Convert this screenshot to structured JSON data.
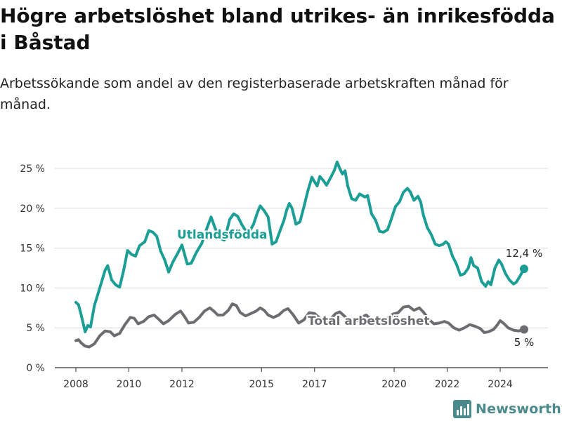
{
  "title": "Högre arbetslöshet bland utrikes- än inrikesfödda i Båstad",
  "subtitle": "Arbetssökande som andel av den registerbaserade arbetskraften månad för månad.",
  "brand": {
    "name": "Newsworthy",
    "icon": "newsworthy-logo-icon"
  },
  "colors": {
    "utlandsfodda": "#1a9e96",
    "total": "#6d6d71",
    "grid": "#d9d9d9",
    "brand": "#4a8a8a"
  },
  "chart_data": {
    "type": "line",
    "title": "Högre arbetslöshet bland utrikes- än inrikesfödda i Båstad",
    "subtitle": "Arbetssökande som andel av den registerbaserade arbetskraften månad för månad.",
    "xlabel": "",
    "ylabel": "",
    "xlim": [
      2008,
      2025
    ],
    "ylim": [
      0,
      25
    ],
    "x_ticks": [
      "2008",
      "2010",
      "2012",
      "2015",
      "2017",
      "2020",
      "2022",
      "2024"
    ],
    "y_ticks": [
      "0 %",
      "5 %",
      "10 %",
      "15 %",
      "20 %",
      "25 %"
    ],
    "grid": "horizontal",
    "legend": "inline labels",
    "series": [
      {
        "name": "Utlandsfödda",
        "end_label": "12,4 %",
        "points": [
          [
            2008.0,
            8.2
          ],
          [
            2008.1,
            7.9
          ],
          [
            2008.2,
            6.6
          ],
          [
            2008.35,
            4.5
          ],
          [
            2008.45,
            5.3
          ],
          [
            2008.55,
            5.1
          ],
          [
            2008.7,
            7.8
          ],
          [
            2008.9,
            10.0
          ],
          [
            2009.1,
            12.2
          ],
          [
            2009.2,
            12.8
          ],
          [
            2009.35,
            11.0
          ],
          [
            2009.5,
            10.4
          ],
          [
            2009.65,
            10.1
          ],
          [
            2009.8,
            12.2
          ],
          [
            2009.95,
            14.7
          ],
          [
            2010.1,
            14.2
          ],
          [
            2010.25,
            14.0
          ],
          [
            2010.4,
            15.3
          ],
          [
            2010.6,
            15.8
          ],
          [
            2010.75,
            17.2
          ],
          [
            2010.9,
            17.0
          ],
          [
            2011.05,
            16.5
          ],
          [
            2011.2,
            14.6
          ],
          [
            2011.35,
            13.5
          ],
          [
            2011.5,
            12.0
          ],
          [
            2011.65,
            13.2
          ],
          [
            2011.85,
            14.4
          ],
          [
            2012.0,
            15.4
          ],
          [
            2012.2,
            13.0
          ],
          [
            2012.35,
            13.1
          ],
          [
            2012.55,
            14.5
          ],
          [
            2012.75,
            15.6
          ],
          [
            2012.95,
            17.6
          ],
          [
            2013.1,
            18.9
          ],
          [
            2013.25,
            17.5
          ],
          [
            2013.45,
            16.2
          ],
          [
            2013.6,
            16.0
          ],
          [
            2013.8,
            18.6
          ],
          [
            2013.95,
            19.3
          ],
          [
            2014.1,
            19.0
          ],
          [
            2014.25,
            18.0
          ],
          [
            2014.4,
            17.2
          ],
          [
            2014.55,
            17.1
          ],
          [
            2014.7,
            18.0
          ],
          [
            2014.85,
            19.5
          ],
          [
            2014.95,
            20.3
          ],
          [
            2015.1,
            19.7
          ],
          [
            2015.25,
            18.9
          ],
          [
            2015.4,
            15.5
          ],
          [
            2015.55,
            15.8
          ],
          [
            2015.7,
            17.2
          ],
          [
            2015.85,
            18.5
          ],
          [
            2015.95,
            19.8
          ],
          [
            2016.05,
            20.6
          ],
          [
            2016.15,
            20.0
          ],
          [
            2016.3,
            18.0
          ],
          [
            2016.45,
            18.3
          ],
          [
            2016.6,
            20.2
          ],
          [
            2016.75,
            22.2
          ],
          [
            2016.9,
            23.9
          ],
          [
            2017.0,
            23.3
          ],
          [
            2017.1,
            22.8
          ],
          [
            2017.2,
            24.0
          ],
          [
            2017.35,
            23.4
          ],
          [
            2017.45,
            22.9
          ],
          [
            2017.6,
            23.8
          ],
          [
            2017.75,
            24.8
          ],
          [
            2017.85,
            25.8
          ],
          [
            2017.95,
            25.0
          ],
          [
            2018.05,
            24.3
          ],
          [
            2018.15,
            24.7
          ],
          [
            2018.25,
            22.8
          ],
          [
            2018.4,
            21.2
          ],
          [
            2018.55,
            21.0
          ],
          [
            2018.7,
            21.8
          ],
          [
            2018.9,
            21.4
          ],
          [
            2019.0,
            21.6
          ],
          [
            2019.15,
            19.3
          ],
          [
            2019.3,
            18.5
          ],
          [
            2019.45,
            17.1
          ],
          [
            2019.6,
            17.0
          ],
          [
            2019.75,
            17.3
          ],
          [
            2019.85,
            18.2
          ],
          [
            2019.95,
            19.2
          ],
          [
            2020.05,
            20.2
          ],
          [
            2020.2,
            20.8
          ],
          [
            2020.35,
            22.0
          ],
          [
            2020.5,
            22.5
          ],
          [
            2020.6,
            22.1
          ],
          [
            2020.75,
            21.0
          ],
          [
            2020.9,
            21.5
          ],
          [
            2021.0,
            20.8
          ],
          [
            2021.1,
            19.2
          ],
          [
            2021.25,
            17.6
          ],
          [
            2021.4,
            16.7
          ],
          [
            2021.55,
            15.5
          ],
          [
            2021.7,
            15.3
          ],
          [
            2021.85,
            15.5
          ],
          [
            2021.95,
            15.8
          ],
          [
            2022.05,
            15.5
          ],
          [
            2022.2,
            14.0
          ],
          [
            2022.35,
            13.0
          ],
          [
            2022.5,
            11.6
          ],
          [
            2022.65,
            11.8
          ],
          [
            2022.8,
            12.5
          ],
          [
            2022.9,
            13.8
          ],
          [
            2023.0,
            12.8
          ],
          [
            2023.15,
            12.5
          ],
          [
            2023.3,
            10.8
          ],
          [
            2023.45,
            10.2
          ],
          [
            2023.55,
            10.8
          ],
          [
            2023.65,
            10.4
          ],
          [
            2023.8,
            12.5
          ],
          [
            2023.95,
            13.5
          ],
          [
            2024.05,
            13.0
          ],
          [
            2024.2,
            11.8
          ],
          [
            2024.35,
            11.0
          ],
          [
            2024.5,
            10.5
          ],
          [
            2024.6,
            10.7
          ],
          [
            2024.75,
            11.5
          ],
          [
            2024.9,
            12.4
          ]
        ]
      },
      {
        "name": "Total arbetslöshet",
        "end_label": "5 %",
        "points": [
          [
            2008.0,
            3.4
          ],
          [
            2008.1,
            3.5
          ],
          [
            2008.2,
            3.1
          ],
          [
            2008.35,
            2.7
          ],
          [
            2008.5,
            2.6
          ],
          [
            2008.7,
            3.0
          ],
          [
            2008.9,
            4.0
          ],
          [
            2009.1,
            4.6
          ],
          [
            2009.3,
            4.5
          ],
          [
            2009.45,
            4.0
          ],
          [
            2009.65,
            4.3
          ],
          [
            2009.85,
            5.4
          ],
          [
            2010.05,
            6.3
          ],
          [
            2010.2,
            6.2
          ],
          [
            2010.35,
            5.5
          ],
          [
            2010.55,
            5.8
          ],
          [
            2010.75,
            6.4
          ],
          [
            2010.95,
            6.6
          ],
          [
            2011.15,
            6.0
          ],
          [
            2011.3,
            5.5
          ],
          [
            2011.5,
            5.9
          ],
          [
            2011.75,
            6.7
          ],
          [
            2011.95,
            7.1
          ],
          [
            2012.1,
            6.4
          ],
          [
            2012.25,
            5.6
          ],
          [
            2012.45,
            5.7
          ],
          [
            2012.65,
            6.3
          ],
          [
            2012.85,
            7.1
          ],
          [
            2013.05,
            7.5
          ],
          [
            2013.2,
            7.1
          ],
          [
            2013.35,
            6.6
          ],
          [
            2013.55,
            6.6
          ],
          [
            2013.75,
            7.2
          ],
          [
            2013.9,
            8.0
          ],
          [
            2014.05,
            7.8
          ],
          [
            2014.2,
            6.9
          ],
          [
            2014.4,
            6.5
          ],
          [
            2014.6,
            6.8
          ],
          [
            2014.8,
            7.1
          ],
          [
            2014.95,
            7.5
          ],
          [
            2015.1,
            7.2
          ],
          [
            2015.25,
            6.6
          ],
          [
            2015.45,
            6.3
          ],
          [
            2015.65,
            6.6
          ],
          [
            2015.85,
            7.2
          ],
          [
            2016.0,
            7.4
          ],
          [
            2016.2,
            6.6
          ],
          [
            2016.4,
            5.6
          ],
          [
            2016.6,
            6.0
          ],
          [
            2016.8,
            6.9
          ],
          [
            2017.0,
            6.8
          ],
          [
            2017.2,
            6.2
          ],
          [
            2017.4,
            5.8
          ],
          [
            2017.6,
            6.1
          ],
          [
            2017.8,
            6.8
          ],
          [
            2017.95,
            7.0
          ],
          [
            2018.15,
            6.4
          ],
          [
            2018.35,
            5.6
          ],
          [
            2018.55,
            5.8
          ],
          [
            2018.75,
            6.3
          ],
          [
            2018.95,
            6.6
          ],
          [
            2019.15,
            6.0
          ],
          [
            2019.35,
            5.4
          ],
          [
            2019.55,
            5.6
          ],
          [
            2019.75,
            6.2
          ],
          [
            2019.95,
            6.7
          ],
          [
            2020.15,
            6.9
          ],
          [
            2020.35,
            7.6
          ],
          [
            2020.55,
            7.7
          ],
          [
            2020.75,
            7.2
          ],
          [
            2020.95,
            7.5
          ],
          [
            2021.1,
            7.0
          ],
          [
            2021.3,
            6.1
          ],
          [
            2021.5,
            5.5
          ],
          [
            2021.7,
            5.6
          ],
          [
            2021.9,
            5.8
          ],
          [
            2022.05,
            5.6
          ],
          [
            2022.25,
            5.0
          ],
          [
            2022.45,
            4.7
          ],
          [
            2022.65,
            5.0
          ],
          [
            2022.85,
            5.4
          ],
          [
            2023.05,
            5.2
          ],
          [
            2023.25,
            4.9
          ],
          [
            2023.4,
            4.4
          ],
          [
            2023.55,
            4.5
          ],
          [
            2023.75,
            4.8
          ],
          [
            2023.9,
            5.4
          ],
          [
            2024.0,
            5.9
          ],
          [
            2024.15,
            5.5
          ],
          [
            2024.3,
            5.0
          ],
          [
            2024.5,
            4.7
          ],
          [
            2024.7,
            4.6
          ],
          [
            2024.9,
            4.8
          ]
        ]
      }
    ]
  }
}
